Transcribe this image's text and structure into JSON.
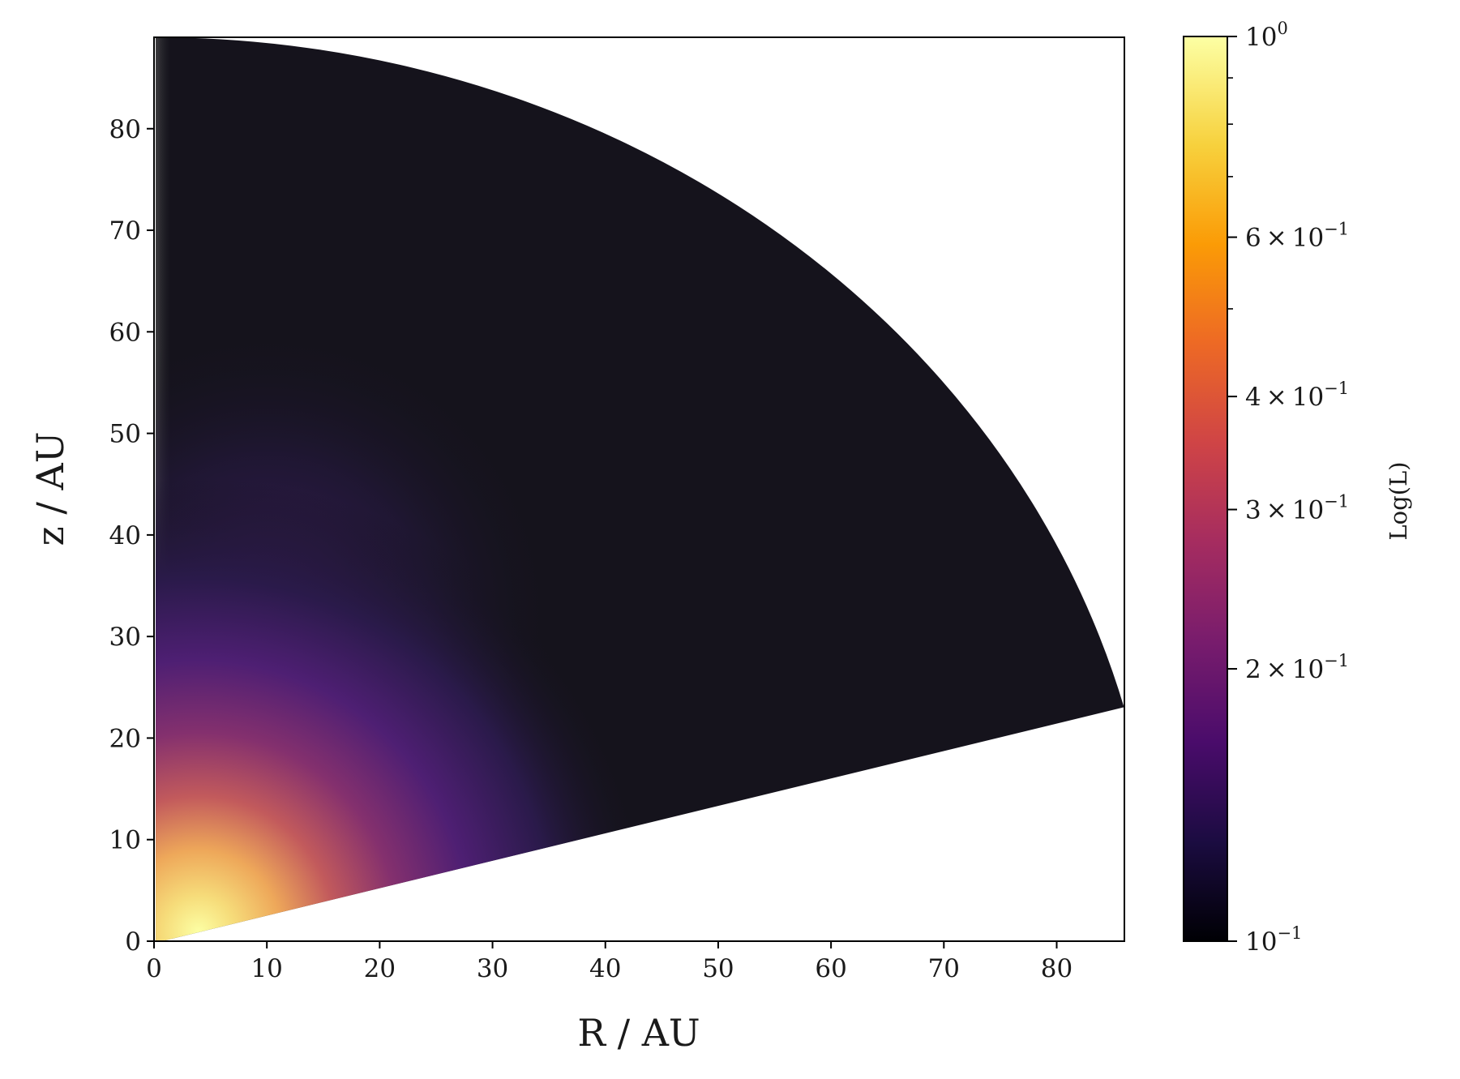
{
  "chart_data": {
    "type": "heatmap",
    "description_of_geometry": "polar wedge (disk quadrant)",
    "xlabel": "R / AU",
    "ylabel": "z / AU",
    "xlim": [
      0,
      86
    ],
    "ylim": [
      0,
      89
    ],
    "x_ticks": [
      "0",
      "10",
      "20",
      "30",
      "40",
      "50",
      "60",
      "70",
      "80"
    ],
    "y_ticks": [
      "0",
      "10",
      "20",
      "30",
      "40",
      "50",
      "60",
      "70",
      "80"
    ],
    "outer_radius": 89,
    "wedge_lower_angle_deg": 15,
    "colormap": "inferno",
    "colorbar": {
      "label": "Log(L)",
      "scale": "log",
      "range": [
        0.1,
        1.0
      ],
      "ticks": [
        {
          "value": 1.0,
          "mantissa": "",
          "base": "10",
          "exponent": "0"
        },
        {
          "value": 0.6,
          "mantissa": "6",
          "base": "10",
          "exponent": "−1"
        },
        {
          "value": 0.4,
          "mantissa": "4",
          "base": "10",
          "exponent": "−1"
        },
        {
          "value": 0.3,
          "mantissa": "3",
          "base": "10",
          "exponent": "−1"
        },
        {
          "value": 0.2,
          "mantissa": "2",
          "base": "10",
          "exponent": "−1"
        },
        {
          "value": 0.1,
          "mantissa": "",
          "base": "10",
          "exponent": "−1"
        }
      ],
      "minor_ticks": [
        0.9,
        0.8,
        0.7,
        0.5
      ]
    },
    "colors": {
      "stops": [
        "#000004",
        "#1b0c41",
        "#4a0c6b",
        "#781c6d",
        "#a52c60",
        "#cf4446",
        "#ed6925",
        "#fb9b06",
        "#f7d13d",
        "#fcffa4"
      ],
      "background_region": "#15131c",
      "axis_region_grey": "#4a4a4a"
    }
  }
}
